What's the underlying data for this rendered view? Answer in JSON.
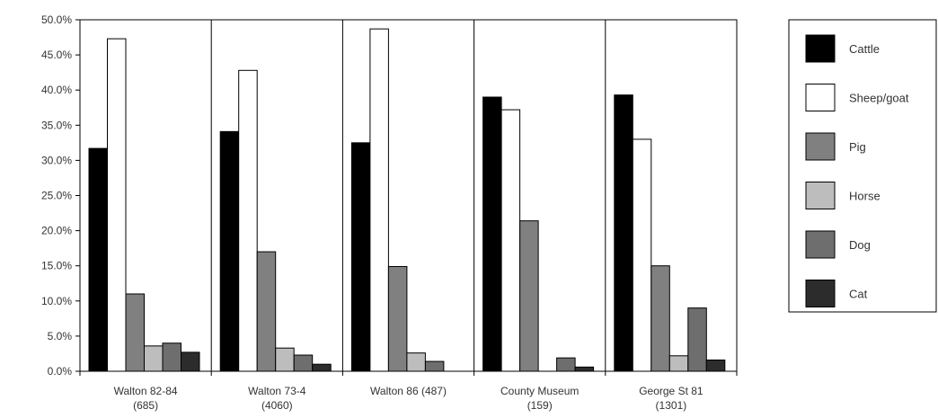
{
  "chart_data": {
    "type": "bar",
    "categories": [
      {
        "line1": "Walton 82-84",
        "line2": "(685)"
      },
      {
        "line1": "Walton 73-4",
        "line2": "(4060)"
      },
      {
        "line1": "Walton 86 (487)",
        "line2": ""
      },
      {
        "line1": "County Museum",
        "line2": "(159)"
      },
      {
        "line1": "George St 81",
        "line2": "(1301)"
      }
    ],
    "series": [
      {
        "name": "Cattle",
        "color": "#000000",
        "values": [
          31.7,
          34.1,
          32.5,
          39.0,
          39.3
        ]
      },
      {
        "name": "Sheep/goat",
        "color": "#ffffff",
        "values": [
          47.3,
          42.8,
          48.7,
          37.2,
          33.0
        ]
      },
      {
        "name": "Pig",
        "color": "#808080",
        "values": [
          11.0,
          17.0,
          14.9,
          21.4,
          15.0
        ]
      },
      {
        "name": "Horse",
        "color": "#bdbdbd",
        "values": [
          3.6,
          3.3,
          2.6,
          0.0,
          2.2
        ]
      },
      {
        "name": "Dog",
        "color": "#6e6e6e",
        "values": [
          4.0,
          2.3,
          1.4,
          1.9,
          9.0
        ]
      },
      {
        "name": "Cat",
        "color": "#2c2c2c",
        "values": [
          2.7,
          1.0,
          0.0,
          0.6,
          1.6
        ]
      }
    ],
    "yticks": [
      "0.0%",
      "5.0%",
      "10.0%",
      "15.0%",
      "20.0%",
      "25.0%",
      "30.0%",
      "35.0%",
      "40.0%",
      "45.0%",
      "50.0%"
    ],
    "ylim": [
      0,
      50
    ],
    "title": "",
    "xlabel": "",
    "ylabel": "",
    "grid": false,
    "legend_position": "right"
  }
}
